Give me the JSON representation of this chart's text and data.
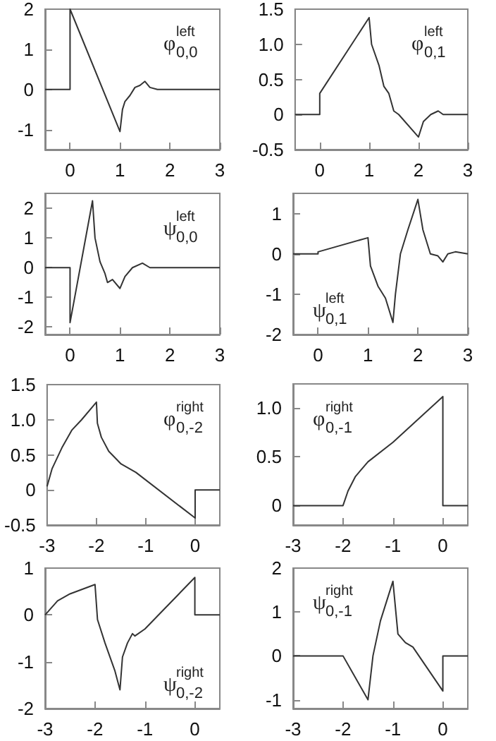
{
  "chart_data": [
    {
      "type": "line",
      "color": "#333333",
      "xlim": [
        -0.5,
        3
      ],
      "ylim": [
        -1.5,
        2
      ],
      "xticks": [
        0,
        1,
        2,
        3
      ],
      "yticks": [
        -1,
        0,
        1,
        2
      ],
      "annotations": [
        "φ$^{left}$$_{0,0}$"
      ],
      "x": [
        -0.5,
        0,
        0,
        1,
        1.05,
        1.1,
        1.2,
        1.3,
        1.4,
        1.5,
        1.6,
        1.75,
        3
      ],
      "values": [
        0,
        0,
        2,
        -1.05,
        -0.5,
        -0.3,
        -0.15,
        0.05,
        0.1,
        0.2,
        0.05,
        0,
        0
      ]
    },
    {
      "type": "line",
      "color": "#333333",
      "xlim": [
        -0.5,
        3
      ],
      "ylim": [
        -0.5,
        1.5
      ],
      "xticks": [
        0,
        1,
        2,
        3
      ],
      "yticks": [
        {
          "value": -0.5,
          "label": "-0.5"
        },
        0,
        {
          "value": 0.5,
          "label": "0.5"
        },
        {
          "value": 1,
          "label": "1.0"
        },
        {
          "value": 1.5,
          "label": "1.5"
        }
      ],
      "annotations": [
        "φ$^{left}$$_{0,1}$"
      ],
      "x": [
        -0.5,
        0,
        0,
        1,
        1.05,
        1.2,
        1.3,
        1.4,
        1.5,
        1.6,
        2,
        2.1,
        2.25,
        2.4,
        2.5,
        2.7,
        3
      ],
      "values": [
        0,
        0,
        0.3,
        1.38,
        1.0,
        0.7,
        0.4,
        0.3,
        0.05,
        0,
        -0.32,
        -0.1,
        0,
        0.05,
        0,
        0,
        0
      ]
    },
    {
      "type": "line",
      "color": "#333333",
      "xlim": [
        -0.5,
        3
      ],
      "ylim": [
        -2.25,
        2.5
      ],
      "xticks": [
        0,
        1,
        2,
        3
      ],
      "yticks": [
        -2,
        -1,
        0,
        1,
        2
      ],
      "annotations": [
        "ψ$^{left}$$_{0,0}$"
      ],
      "x": [
        -0.5,
        0,
        0,
        0.45,
        0.5,
        0.6,
        0.7,
        0.75,
        0.85,
        1,
        1.1,
        1.25,
        1.45,
        1.6,
        3
      ],
      "values": [
        0,
        0,
        -1.85,
        2.25,
        1.0,
        0.2,
        -0.2,
        -0.5,
        -0.4,
        -0.7,
        -0.3,
        0,
        0.15,
        0,
        0
      ]
    },
    {
      "type": "line",
      "color": "#333333",
      "xlim": [
        -0.5,
        3
      ],
      "ylim": [
        -2,
        1.5
      ],
      "xticks": [
        0,
        1,
        2,
        3
      ],
      "yticks": [
        -2,
        -1,
        0,
        1
      ],
      "annotations": [
        "ψ$^{left}$$_{0,1}$"
      ],
      "x": [
        -0.5,
        0,
        0,
        1,
        1.05,
        1.2,
        1.35,
        1.5,
        1.55,
        1.65,
        1.8,
        2,
        2.1,
        2.25,
        2.4,
        2.5,
        2.6,
        2.75,
        3
      ],
      "values": [
        0,
        0,
        0.05,
        0.4,
        -0.3,
        -0.8,
        -1.1,
        -1.7,
        -1,
        0,
        0.6,
        1.35,
        0.6,
        0,
        -0.05,
        -0.2,
        0,
        0.05,
        0
      ]
    },
    {
      "type": "line",
      "color": "#333333",
      "xlim": [
        -3,
        0.5
      ],
      "ylim": [
        -0.5,
        1.5
      ],
      "xticks": [
        -3,
        -2,
        -1,
        0
      ],
      "yticks": [
        {
          "value": -0.5,
          "label": "-0.5"
        },
        0,
        {
          "value": 0.5,
          "label": "0.5"
        },
        {
          "value": 1,
          "label": "1.0"
        },
        {
          "value": 1.5,
          "label": "1.5"
        }
      ],
      "annotations": [
        "φ$^{right}$$_{0,-2}$"
      ],
      "x": [
        -3,
        -2.9,
        -2.7,
        -2.5,
        -2.3,
        -2,
        -1.98,
        -1.9,
        -1.75,
        -1.5,
        -1.2,
        0,
        0,
        0.5
      ],
      "values": [
        0.05,
        0.3,
        0.6,
        0.85,
        1.0,
        1.25,
        0.95,
        0.75,
        0.55,
        0.37,
        0.25,
        -0.4,
        0,
        0
      ]
    },
    {
      "type": "line",
      "color": "#333333",
      "xlim": [
        -3,
        0.5
      ],
      "ylim": [
        -0.2,
        1.25
      ],
      "xticks": [
        -3,
        -2,
        -1,
        0
      ],
      "yticks": [
        0,
        {
          "value": 0.5,
          "label": "0.5"
        },
        {
          "value": 1,
          "label": "1.0"
        }
      ],
      "annotations": [
        "φ$^{right}$$_{0,-1}$"
      ],
      "x": [
        -3,
        -2,
        -1.9,
        -1.75,
        -1.5,
        -1,
        0,
        0,
        0.5
      ],
      "values": [
        0,
        0,
        0.15,
        0.3,
        0.45,
        0.65,
        1.12,
        0,
        0
      ]
    },
    {
      "type": "line",
      "color": "#333333",
      "xlim": [
        -3,
        0.5
      ],
      "ylim": [
        -2,
        1
      ],
      "xticks": [
        -3,
        -2,
        -1,
        0
      ],
      "yticks": [
        -2,
        -1,
        0,
        1
      ],
      "annotations": [
        "ψ$^{right}$$_{0,-2}$"
      ],
      "x": [
        -3,
        -2.75,
        -2.5,
        -2,
        -1.95,
        -1.8,
        -1.6,
        -1.5,
        -1.45,
        -1.35,
        -1.25,
        -1.2,
        -1,
        0,
        0,
        0.5
      ],
      "values": [
        0,
        0.3,
        0.45,
        0.65,
        -0.1,
        -0.6,
        -1.2,
        -1.6,
        -0.9,
        -0.6,
        -0.4,
        -0.45,
        -0.3,
        0.8,
        0,
        0
      ]
    },
    {
      "type": "line",
      "color": "#333333",
      "xlim": [
        -3,
        0.5
      ],
      "ylim": [
        -1.2,
        2
      ],
      "xticks": [
        -3,
        -2,
        -1,
        0
      ],
      "yticks": [
        -1,
        0,
        1,
        2
      ],
      "annotations": [
        "ψ$^{right}$$_{0,-1}$"
      ],
      "x": [
        -3,
        -2,
        -1.8,
        -1.5,
        -1.4,
        -1.25,
        -1,
        -0.9,
        -0.75,
        -0.6,
        0,
        0,
        0.5
      ],
      "values": [
        0,
        0,
        -0.4,
        -1,
        0,
        0.8,
        1.7,
        0.5,
        0.3,
        0.2,
        -0.8,
        0,
        0
      ]
    }
  ]
}
